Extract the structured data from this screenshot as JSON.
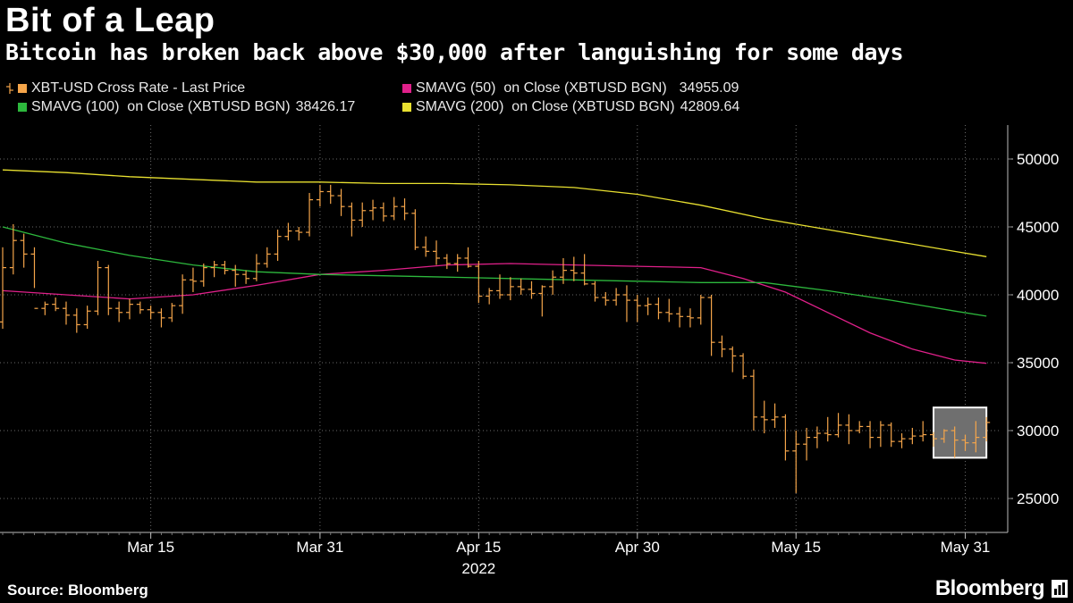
{
  "header": {
    "title": "Bit of a Leap",
    "subtitle": "Bitcoin has broken back above $30,000 after languishing for some days"
  },
  "legend": [
    {
      "label": "XBT-USD Cross Rate - Last Price",
      "value": "",
      "color": "#f5a54a"
    },
    {
      "label": "SMAVG (50)  on Close (XBTUSD BGN)",
      "value": "34955.09",
      "color": "#e0208a"
    },
    {
      "label": "SMAVG (100)  on Close (XBTUSD BGN)",
      "value": "38426.17",
      "color": "#2db83d"
    },
    {
      "label": "SMAVG (200)  on Close (XBTUSD BGN)",
      "value": "42809.64",
      "color": "#e8e030"
    }
  ],
  "footer": {
    "source": "Source: Bloomberg",
    "brand": "Bloomberg"
  },
  "chart_data": {
    "type": "ohlc",
    "title": "Bit of a Leap",
    "xlabel": "2022",
    "ylabel": "",
    "ylim": [
      22500,
      52500
    ],
    "y_ticks": [
      25000,
      30000,
      35000,
      40000,
      45000,
      50000
    ],
    "x_tick_labels": [
      "Mar 15",
      "Mar 31",
      "Apr 15",
      "Apr 30",
      "May 15",
      "May 31"
    ],
    "x_tick_days": [
      14,
      30,
      45,
      60,
      75,
      91
    ],
    "year_label": "2022",
    "highlight_box": {
      "day_from": 88,
      "day_to": 93,
      "value_from": 28000,
      "value_to": 31700
    },
    "price_series": {
      "name": "XBT-USD Cross Rate - Last Price",
      "color": "#f5a54a",
      "bars": [
        {
          "day": 0,
          "open": 38000,
          "high": 43500,
          "low": 37500,
          "close": 42000
        },
        {
          "day": 1,
          "open": 42000,
          "high": 45200,
          "low": 41500,
          "close": 44000
        },
        {
          "day": 2,
          "open": 44000,
          "high": 44500,
          "low": 42000,
          "close": 43000
        },
        {
          "day": 3,
          "open": 43000,
          "high": 43500,
          "low": 40500,
          "close": 39000
        },
        {
          "day": 4,
          "open": 39000,
          "high": 39500,
          "low": 38500,
          "close": 39300
        },
        {
          "day": 5,
          "open": 39300,
          "high": 39800,
          "low": 38800,
          "close": 39000
        },
        {
          "day": 6,
          "open": 39000,
          "high": 39500,
          "low": 37800,
          "close": 38500
        },
        {
          "day": 7,
          "open": 38500,
          "high": 39000,
          "low": 37200,
          "close": 37800
        },
        {
          "day": 8,
          "open": 37800,
          "high": 39200,
          "low": 37500,
          "close": 38800
        },
        {
          "day": 9,
          "open": 38800,
          "high": 42500,
          "low": 38500,
          "close": 42000
        },
        {
          "day": 10,
          "open": 42000,
          "high": 42200,
          "low": 38500,
          "close": 39000
        },
        {
          "day": 11,
          "open": 39000,
          "high": 39500,
          "low": 38000,
          "close": 38700
        },
        {
          "day": 12,
          "open": 38700,
          "high": 39700,
          "low": 38200,
          "close": 39300
        },
        {
          "day": 13,
          "open": 39300,
          "high": 39500,
          "low": 38600,
          "close": 38900
        },
        {
          "day": 14,
          "open": 38900,
          "high": 39200,
          "low": 38200,
          "close": 38700
        },
        {
          "day": 15,
          "open": 38700,
          "high": 39000,
          "low": 37600,
          "close": 38300
        },
        {
          "day": 16,
          "open": 38300,
          "high": 39400,
          "low": 38000,
          "close": 39200
        },
        {
          "day": 17,
          "open": 39200,
          "high": 41500,
          "low": 38600,
          "close": 41100
        },
        {
          "day": 18,
          "open": 41100,
          "high": 42000,
          "low": 40200,
          "close": 41000
        },
        {
          "day": 19,
          "open": 41000,
          "high": 42300,
          "low": 40600,
          "close": 42000
        },
        {
          "day": 20,
          "open": 42000,
          "high": 42500,
          "low": 41300,
          "close": 42200
        },
        {
          "day": 21,
          "open": 42200,
          "high": 42500,
          "low": 41500,
          "close": 41800
        },
        {
          "day": 22,
          "open": 41800,
          "high": 42200,
          "low": 40600,
          "close": 41500
        },
        {
          "day": 23,
          "open": 41500,
          "high": 41800,
          "low": 40800,
          "close": 41200
        },
        {
          "day": 24,
          "open": 41200,
          "high": 43000,
          "low": 41000,
          "close": 42300
        },
        {
          "day": 25,
          "open": 42300,
          "high": 43500,
          "low": 42000,
          "close": 43000
        },
        {
          "day": 26,
          "open": 43000,
          "high": 44800,
          "low": 42500,
          "close": 44300
        },
        {
          "day": 27,
          "open": 44300,
          "high": 45300,
          "low": 44000,
          "close": 44700
        },
        {
          "day": 28,
          "open": 44700,
          "high": 45000,
          "low": 44000,
          "close": 44600
        },
        {
          "day": 29,
          "open": 44600,
          "high": 47500,
          "low": 44300,
          "close": 47000
        },
        {
          "day": 30,
          "open": 47000,
          "high": 48100,
          "low": 46500,
          "close": 47600
        },
        {
          "day": 31,
          "open": 47600,
          "high": 48100,
          "low": 46700,
          "close": 47300
        },
        {
          "day": 32,
          "open": 47300,
          "high": 47800,
          "low": 45800,
          "close": 46500
        },
        {
          "day": 33,
          "open": 46500,
          "high": 46800,
          "low": 44300,
          "close": 45500
        },
        {
          "day": 34,
          "open": 45500,
          "high": 46800,
          "low": 45000,
          "close": 46200
        },
        {
          "day": 35,
          "open": 46200,
          "high": 47000,
          "low": 45500,
          "close": 46400
        },
        {
          "day": 36,
          "open": 46400,
          "high": 46800,
          "low": 45400,
          "close": 45800
        },
        {
          "day": 37,
          "open": 45800,
          "high": 47200,
          "low": 45500,
          "close": 46500
        },
        {
          "day": 38,
          "open": 46500,
          "high": 47100,
          "low": 45500,
          "close": 46000
        },
        {
          "day": 39,
          "open": 46000,
          "high": 46300,
          "low": 43300,
          "close": 43500
        },
        {
          "day": 40,
          "open": 43500,
          "high": 44300,
          "low": 42800,
          "close": 43200
        },
        {
          "day": 41,
          "open": 43200,
          "high": 44000,
          "low": 42200,
          "close": 42700
        },
        {
          "day": 42,
          "open": 42700,
          "high": 43000,
          "low": 41900,
          "close": 42300
        },
        {
          "day": 43,
          "open": 42300,
          "high": 43000,
          "low": 41700,
          "close": 42700
        },
        {
          "day": 44,
          "open": 42700,
          "high": 43500,
          "low": 42000,
          "close": 42100
        },
        {
          "day": 45,
          "open": 42100,
          "high": 42500,
          "low": 39400,
          "close": 39900
        },
        {
          "day": 46,
          "open": 39900,
          "high": 40500,
          "low": 39300,
          "close": 40300
        },
        {
          "day": 47,
          "open": 40300,
          "high": 41500,
          "low": 39700,
          "close": 40000
        },
        {
          "day": 48,
          "open": 40000,
          "high": 41300,
          "low": 39600,
          "close": 40600
        },
        {
          "day": 49,
          "open": 40600,
          "high": 41200,
          "low": 40000,
          "close": 40400
        },
        {
          "day": 50,
          "open": 40400,
          "high": 41000,
          "low": 39700,
          "close": 40100
        },
        {
          "day": 51,
          "open": 40100,
          "high": 40700,
          "low": 38400,
          "close": 40600
        },
        {
          "day": 52,
          "open": 40600,
          "high": 41800,
          "low": 40000,
          "close": 41300
        },
        {
          "day": 53,
          "open": 41300,
          "high": 42700,
          "low": 40800,
          "close": 41800
        },
        {
          "day": 54,
          "open": 41800,
          "high": 42800,
          "low": 41000,
          "close": 41600
        },
        {
          "day": 55,
          "open": 41600,
          "high": 43000,
          "low": 40700,
          "close": 40800
        },
        {
          "day": 56,
          "open": 40800,
          "high": 41000,
          "low": 39500,
          "close": 39800
        },
        {
          "day": 57,
          "open": 39800,
          "high": 40200,
          "low": 39200,
          "close": 39600
        },
        {
          "day": 58,
          "open": 39600,
          "high": 40500,
          "low": 39200,
          "close": 40000
        },
        {
          "day": 59,
          "open": 40000,
          "high": 40700,
          "low": 38000,
          "close": 39600
        },
        {
          "day": 60,
          "open": 39600,
          "high": 40000,
          "low": 38000,
          "close": 39200
        },
        {
          "day": 61,
          "open": 39200,
          "high": 39800,
          "low": 38500,
          "close": 39300
        },
        {
          "day": 62,
          "open": 39300,
          "high": 39800,
          "low": 38200,
          "close": 38700
        },
        {
          "day": 63,
          "open": 38700,
          "high": 39700,
          "low": 38000,
          "close": 38600
        },
        {
          "day": 64,
          "open": 38600,
          "high": 39100,
          "low": 37600,
          "close": 38400
        },
        {
          "day": 65,
          "open": 38400,
          "high": 39000,
          "low": 37600,
          "close": 38300
        },
        {
          "day": 66,
          "open": 38300,
          "high": 40000,
          "low": 37800,
          "close": 39800
        },
        {
          "day": 67,
          "open": 39800,
          "high": 40000,
          "low": 35500,
          "close": 36500
        },
        {
          "day": 68,
          "open": 36500,
          "high": 37000,
          "low": 35400,
          "close": 36000
        },
        {
          "day": 69,
          "open": 36000,
          "high": 36200,
          "low": 34300,
          "close": 35500
        },
        {
          "day": 70,
          "open": 35500,
          "high": 35700,
          "low": 33800,
          "close": 34000
        },
        {
          "day": 71,
          "open": 34000,
          "high": 34500,
          "low": 30000,
          "close": 31000
        },
        {
          "day": 72,
          "open": 31000,
          "high": 32200,
          "low": 29800,
          "close": 30800
        },
        {
          "day": 73,
          "open": 30800,
          "high": 32000,
          "low": 30200,
          "close": 31000
        },
        {
          "day": 74,
          "open": 31000,
          "high": 31200,
          "low": 27800,
          "close": 28500
        },
        {
          "day": 75,
          "open": 28500,
          "high": 30000,
          "low": 25400,
          "close": 29000
        },
        {
          "day": 76,
          "open": 29000,
          "high": 30200,
          "low": 27800,
          "close": 29500
        },
        {
          "day": 77,
          "open": 29500,
          "high": 30300,
          "low": 28700,
          "close": 29800
        },
        {
          "day": 78,
          "open": 29800,
          "high": 31000,
          "low": 29200,
          "close": 29700
        },
        {
          "day": 79,
          "open": 29700,
          "high": 31300,
          "low": 29500,
          "close": 30400
        },
        {
          "day": 80,
          "open": 30400,
          "high": 31200,
          "low": 29000,
          "close": 30000
        },
        {
          "day": 81,
          "open": 30000,
          "high": 30700,
          "low": 29800,
          "close": 30300
        },
        {
          "day": 82,
          "open": 30300,
          "high": 30700,
          "low": 28700,
          "close": 29500
        },
        {
          "day": 83,
          "open": 29500,
          "high": 30700,
          "low": 28800,
          "close": 30400
        },
        {
          "day": 84,
          "open": 30400,
          "high": 30600,
          "low": 28800,
          "close": 29200
        },
        {
          "day": 85,
          "open": 29200,
          "high": 29800,
          "low": 28700,
          "close": 29400
        },
        {
          "day": 86,
          "open": 29400,
          "high": 30200,
          "low": 29000,
          "close": 29600
        },
        {
          "day": 87,
          "open": 29600,
          "high": 30700,
          "low": 29200,
          "close": 29700
        },
        {
          "day": 88,
          "open": 29700,
          "high": 29900,
          "low": 28800,
          "close": 29400
        },
        {
          "day": 89,
          "open": 29400,
          "high": 30100,
          "low": 29100,
          "close": 30000
        },
        {
          "day": 90,
          "open": 30000,
          "high": 30300,
          "low": 28000,
          "close": 29300
        },
        {
          "day": 91,
          "open": 29300,
          "high": 29700,
          "low": 28500,
          "close": 29100
        },
        {
          "day": 92,
          "open": 29100,
          "high": 30700,
          "low": 28400,
          "close": 29500
        },
        {
          "day": 93,
          "open": 29500,
          "high": 31000,
          "low": 29200,
          "close": 30600
        }
      ]
    },
    "lines": [
      {
        "name": "SMAVG (50)",
        "color": "#e0208a",
        "points": [
          [
            0,
            40300
          ],
          [
            6,
            40000
          ],
          [
            12,
            39700
          ],
          [
            18,
            40000
          ],
          [
            24,
            40700
          ],
          [
            30,
            41500
          ],
          [
            36,
            41800
          ],
          [
            42,
            42200
          ],
          [
            48,
            42300
          ],
          [
            54,
            42200
          ],
          [
            60,
            42100
          ],
          [
            66,
            42000
          ],
          [
            70,
            41200
          ],
          [
            74,
            40200
          ],
          [
            78,
            38700
          ],
          [
            82,
            37200
          ],
          [
            86,
            36000
          ],
          [
            90,
            35200
          ],
          [
            93,
            34955
          ]
        ]
      },
      {
        "name": "SMAVG (100)",
        "color": "#2db83d",
        "points": [
          [
            0,
            45000
          ],
          [
            6,
            43800
          ],
          [
            12,
            42900
          ],
          [
            18,
            42200
          ],
          [
            24,
            41700
          ],
          [
            30,
            41500
          ],
          [
            36,
            41400
          ],
          [
            42,
            41300
          ],
          [
            48,
            41200
          ],
          [
            54,
            41100
          ],
          [
            60,
            41000
          ],
          [
            66,
            40900
          ],
          [
            72,
            40900
          ],
          [
            78,
            40300
          ],
          [
            84,
            39600
          ],
          [
            90,
            38800
          ],
          [
            93,
            38426
          ]
        ]
      },
      {
        "name": "SMAVG (200)",
        "color": "#e8e030",
        "points": [
          [
            0,
            49200
          ],
          [
            6,
            49000
          ],
          [
            12,
            48700
          ],
          [
            18,
            48500
          ],
          [
            24,
            48300
          ],
          [
            30,
            48300
          ],
          [
            36,
            48200
          ],
          [
            42,
            48200
          ],
          [
            48,
            48100
          ],
          [
            54,
            47900
          ],
          [
            60,
            47400
          ],
          [
            66,
            46600
          ],
          [
            72,
            45600
          ],
          [
            78,
            44800
          ],
          [
            84,
            44000
          ],
          [
            90,
            43200
          ],
          [
            93,
            42810
          ]
        ]
      }
    ]
  }
}
